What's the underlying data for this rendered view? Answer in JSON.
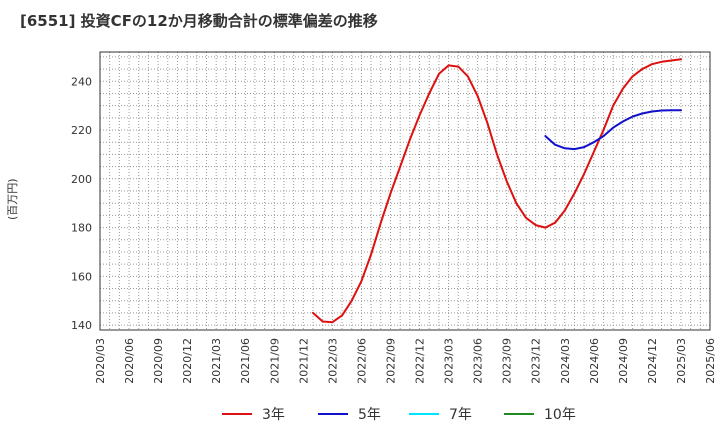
{
  "chart_data": {
    "type": "line",
    "title": "[6551]  投資CFの12か月移動合計の標準偏差の推移",
    "ylabel": "(百万円)",
    "ylim": [
      138,
      252
    ],
    "yticks": [
      140,
      160,
      180,
      200,
      220,
      240
    ],
    "xticks": [
      "2020/03",
      "2020/06",
      "2020/09",
      "2020/12",
      "2021/03",
      "2021/06",
      "2021/09",
      "2021/12",
      "2022/03",
      "2022/06",
      "2022/09",
      "2022/12",
      "2023/03",
      "2023/06",
      "2023/09",
      "2023/12",
      "2024/03",
      "2024/06",
      "2024/09",
      "2024/12",
      "2025/03",
      "2025/06"
    ],
    "grid": true,
    "legend_position": "bottom",
    "series": [
      {
        "name": "3年",
        "color": "#dd1111",
        "x": [
          "2022/01",
          "2022/02",
          "2022/03",
          "2022/04",
          "2022/05",
          "2022/06",
          "2022/07",
          "2022/08",
          "2022/09",
          "2022/10",
          "2022/11",
          "2022/12",
          "2023/01",
          "2023/02",
          "2023/03",
          "2023/04",
          "2023/05",
          "2023/06",
          "2023/07",
          "2023/08",
          "2023/09",
          "2023/10",
          "2023/11",
          "2023/12",
          "2024/01",
          "2024/02",
          "2024/03",
          "2024/04",
          "2024/05",
          "2024/06",
          "2024/07",
          "2024/08",
          "2024/09",
          "2024/10",
          "2024/11",
          "2024/12",
          "2025/01",
          "2025/02",
          "2025/03"
        ],
        "values": [
          145,
          141.5,
          141.2,
          144,
          150,
          158,
          169,
          182,
          194,
          205,
          216,
          226,
          235,
          243,
          246.5,
          246,
          242,
          234,
          223,
          210,
          199,
          190,
          184,
          181,
          180,
          182,
          187,
          194,
          202,
          211,
          220,
          230,
          237,
          242,
          245,
          247,
          248,
          248.5,
          249
        ]
      },
      {
        "name": "5年",
        "color": "#1111cc",
        "x": [
          "2024/01",
          "2024/02",
          "2024/03",
          "2024/04",
          "2024/05",
          "2024/06",
          "2024/07",
          "2024/08",
          "2024/09",
          "2024/10",
          "2024/11",
          "2024/12",
          "2025/01",
          "2025/02",
          "2025/03"
        ],
        "values": [
          217.5,
          214,
          212.5,
          212.2,
          213,
          215,
          217.5,
          221,
          223.5,
          225.5,
          226.8,
          227.6,
          228,
          228.1,
          228.1
        ]
      },
      {
        "name": "7年",
        "color": "#00e5ff",
        "x": [],
        "values": []
      },
      {
        "name": "10年",
        "color": "#228822",
        "x": [],
        "values": []
      }
    ]
  }
}
